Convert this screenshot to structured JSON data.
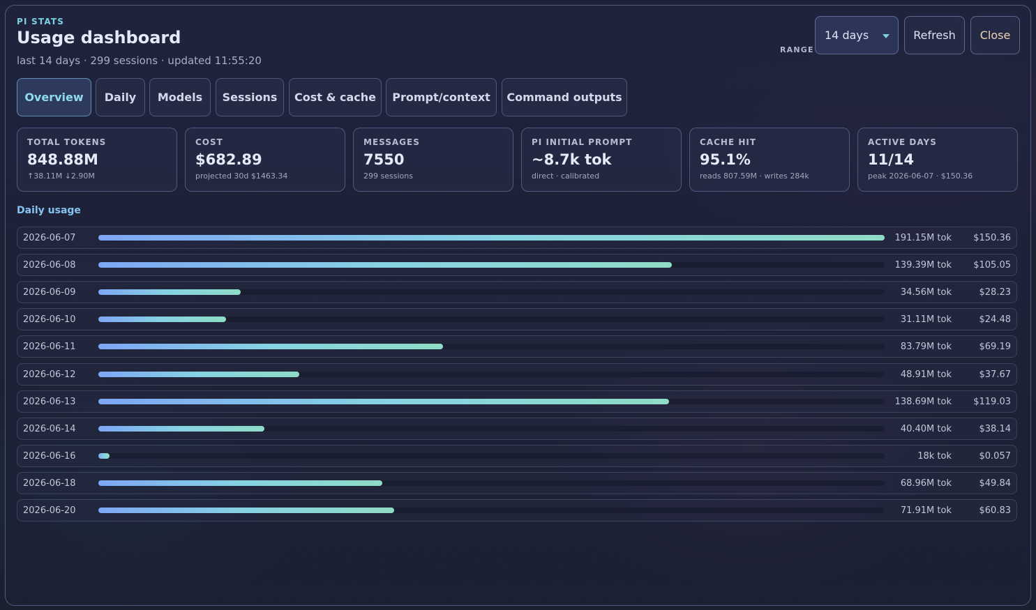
{
  "header": {
    "eyebrow": "PI STATS",
    "title": "Usage dashboard",
    "subtitle": "last 14 days · 299 sessions · updated 11:55:20",
    "range_label": "RANGE",
    "range_value": "14 days",
    "refresh_label": "Refresh",
    "close_label": "Close"
  },
  "tabs": [
    {
      "label": "Overview",
      "active": true
    },
    {
      "label": "Daily",
      "active": false
    },
    {
      "label": "Models",
      "active": false
    },
    {
      "label": "Sessions",
      "active": false
    },
    {
      "label": "Cost & cache",
      "active": false
    },
    {
      "label": "Prompt/context",
      "active": false
    },
    {
      "label": "Command outputs",
      "active": false
    }
  ],
  "cards": [
    {
      "label": "TOTAL TOKENS",
      "value": "848.88M",
      "sub": "↑38.11M ↓2.90M"
    },
    {
      "label": "COST",
      "value": "$682.89",
      "sub": "projected 30d $1463.34"
    },
    {
      "label": "MESSAGES",
      "value": "7550",
      "sub": "299 sessions"
    },
    {
      "label": "PI INITIAL PROMPT",
      "value": "~8.7k tok",
      "sub": "direct · calibrated"
    },
    {
      "label": "CACHE HIT",
      "value": "95.1%",
      "sub": "reads 807.59M · writes 284k"
    },
    {
      "label": "ACTIVE DAYS",
      "value": "11/14",
      "sub": "peak 2026-06-07 · $150.36"
    }
  ],
  "daily": {
    "title": "Daily usage",
    "rows": [
      {
        "date": "2026-06-07",
        "tokens_m": 191.15,
        "tokens_label": "191.15M tok",
        "cost": "$150.36"
      },
      {
        "date": "2026-06-08",
        "tokens_m": 139.39,
        "tokens_label": "139.39M tok",
        "cost": "$105.05"
      },
      {
        "date": "2026-06-09",
        "tokens_m": 34.56,
        "tokens_label": "34.56M tok",
        "cost": "$28.23"
      },
      {
        "date": "2026-06-10",
        "tokens_m": 31.11,
        "tokens_label": "31.11M tok",
        "cost": "$24.48"
      },
      {
        "date": "2026-06-11",
        "tokens_m": 83.79,
        "tokens_label": "83.79M tok",
        "cost": "$69.19"
      },
      {
        "date": "2026-06-12",
        "tokens_m": 48.91,
        "tokens_label": "48.91M tok",
        "cost": "$37.67"
      },
      {
        "date": "2026-06-13",
        "tokens_m": 138.69,
        "tokens_label": "138.69M tok",
        "cost": "$119.03"
      },
      {
        "date": "2026-06-14",
        "tokens_m": 40.4,
        "tokens_label": "40.40M tok",
        "cost": "$38.14"
      },
      {
        "date": "2026-06-16",
        "tokens_m": 0.018,
        "tokens_label": "18k tok",
        "cost": "$0.057"
      },
      {
        "date": "2026-06-18",
        "tokens_m": 68.96,
        "tokens_label": "68.96M tok",
        "cost": "$49.84"
      },
      {
        "date": "2026-06-20",
        "tokens_m": 71.91,
        "tokens_label": "71.91M tok",
        "cost": "$60.83"
      }
    ]
  }
}
